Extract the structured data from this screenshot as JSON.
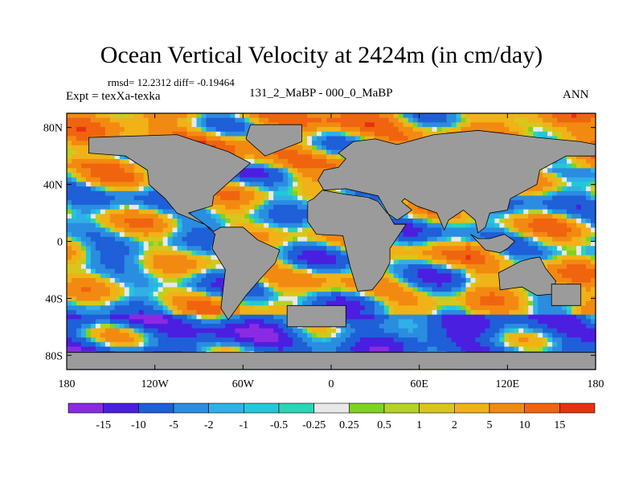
{
  "chart_data": {
    "type": "heatmap",
    "title": "Ocean Vertical Velocity at 2424m (in cm/day)",
    "stats_line": "rmsd= 12.2312 diff= -0.19464",
    "left_label": "Expt = texXa-texka",
    "center_label": "131_2_MaBP - 000_0_MaBP",
    "right_label": "ANN",
    "x_range": [
      -180,
      180
    ],
    "y_range": [
      -90,
      90
    ],
    "x_ticks": [
      {
        "value": -180,
        "label": "180"
      },
      {
        "value": -120,
        "label": "120W"
      },
      {
        "value": -60,
        "label": "60W"
      },
      {
        "value": 0,
        "label": "0"
      },
      {
        "value": 60,
        "label": "60E"
      },
      {
        "value": 120,
        "label": "120E"
      },
      {
        "value": 180,
        "label": "180"
      }
    ],
    "y_ticks": [
      {
        "value": 80,
        "label": "80N"
      },
      {
        "value": 40,
        "label": "40N"
      },
      {
        "value": 0,
        "label": "0"
      },
      {
        "value": -40,
        "label": "40S"
      },
      {
        "value": -80,
        "label": "80S"
      }
    ],
    "colorbar": {
      "levels": [
        "-15",
        "-10",
        "-5",
        "-2",
        "-1",
        "-0.5",
        "-0.25",
        "0.25",
        "0.5",
        "1",
        "2",
        "5",
        "10",
        "15"
      ],
      "colors": [
        "#8a2be2",
        "#4b1fe0",
        "#1f5fd8",
        "#2a8de0",
        "#2fb0e6",
        "#22c8d8",
        "#29d6b6",
        "#e8e8e8",
        "#7ed321",
        "#b5d325",
        "#d9c61c",
        "#f0b216",
        "#f28a12",
        "#f0640f",
        "#e6320d"
      ]
    },
    "land_color": "#9b9b9b"
  }
}
